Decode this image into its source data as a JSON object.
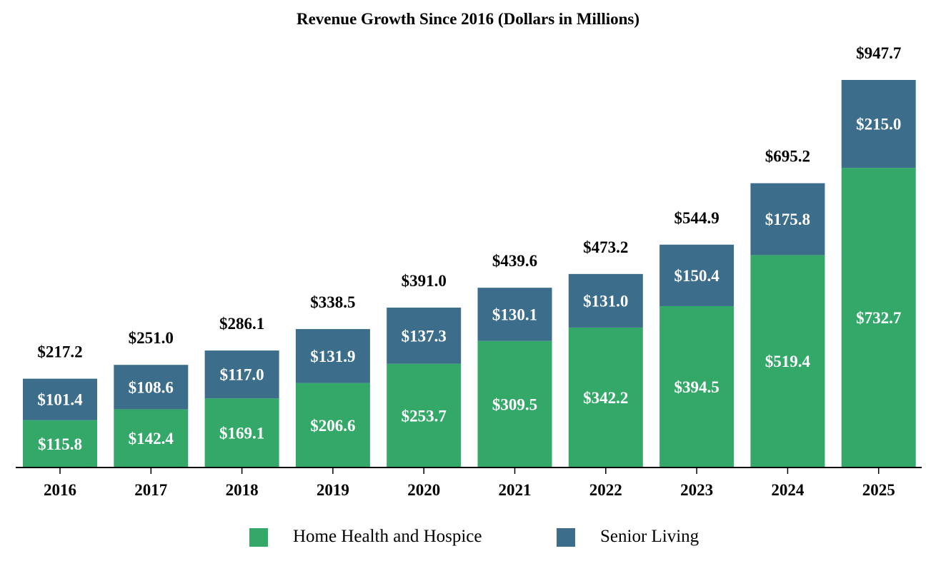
{
  "chart_data": {
    "type": "bar",
    "stacked": true,
    "title": "Revenue Growth Since 2016 (Dollars in Millions)",
    "xlabel": "",
    "ylabel": "",
    "categories": [
      "2016",
      "2017",
      "2018",
      "2019",
      "2020",
      "2021",
      "2022",
      "2023",
      "2024",
      "2025"
    ],
    "series": [
      {
        "name": "Home Health and Hospice",
        "color": "#34a869",
        "values": [
          115.8,
          142.4,
          169.1,
          206.6,
          253.7,
          309.5,
          342.2,
          394.5,
          519.4,
          732.7
        ],
        "labels": [
          "$115.8",
          "$142.4",
          "$169.1",
          "$206.6",
          "$253.7",
          "$309.5",
          "$342.2",
          "$394.5",
          "$519.4",
          "$732.7"
        ]
      },
      {
        "name": "Senior Living",
        "color": "#3c6e8c",
        "values": [
          101.4,
          108.6,
          117.0,
          131.9,
          137.3,
          130.1,
          131.0,
          150.4,
          175.8,
          215.0
        ],
        "labels": [
          "$101.4",
          "$108.6",
          "$117.0",
          "$131.9",
          "$137.3",
          "$130.1",
          "$131.0",
          "$150.4",
          "$175.8",
          "$215.0"
        ]
      }
    ],
    "totals": [
      217.2,
      251.0,
      286.1,
      338.5,
      391.0,
      439.6,
      473.2,
      544.9,
      695.2,
      947.7
    ],
    "total_labels": [
      "$217.2",
      "$251.0",
      "$286.1",
      "$338.5",
      "$391.0",
      "$439.6",
      "$473.2",
      "$544.9",
      "$695.2",
      "$947.7"
    ],
    "ylim": [
      0,
      947.7
    ],
    "grid": false,
    "legend_position": "bottom-center"
  }
}
